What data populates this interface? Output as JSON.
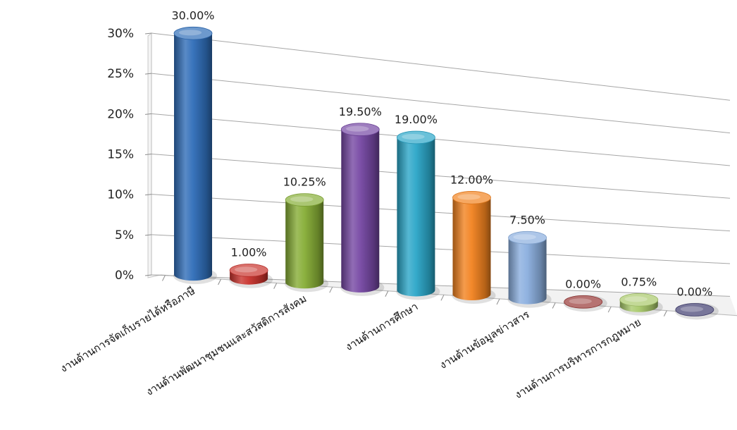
{
  "chart_data": {
    "type": "bar",
    "categories": [
      "งานด้านการจัดเก็บรายได้หรือภาษี",
      "",
      "งานด้านพัฒนาชุมชนและสวัสดิการสังคม",
      "",
      "งานด้านการศึกษา",
      "",
      "งานด้านข้อมูลข่าวสาร",
      "",
      "งานด้านการบริหารการกฎหมาย",
      ""
    ],
    "values": [
      30.0,
      1.0,
      10.25,
      19.5,
      19.0,
      12.0,
      7.5,
      0.0,
      0.75,
      0.0
    ],
    "data_labels": [
      "30.00%",
      "1.00%",
      "10.25%",
      "19.50%",
      "19.00%",
      "12.00%",
      "7.50%",
      "0.00%",
      "0.75%",
      "0.00%"
    ],
    "colors": [
      "#2f6db8",
      "#c8322c",
      "#86ad35",
      "#7547a3",
      "#2aa6c8",
      "#f2821f",
      "#8aaede",
      "#963634",
      "#a9c96b",
      "#3e3b6e"
    ],
    "y_ticks": [
      "0%",
      "5%",
      "10%",
      "15%",
      "20%",
      "25%",
      "30%"
    ],
    "ylim": [
      0,
      30
    ],
    "grid": true,
    "legend": "none",
    "style": "3d-cylinder"
  }
}
